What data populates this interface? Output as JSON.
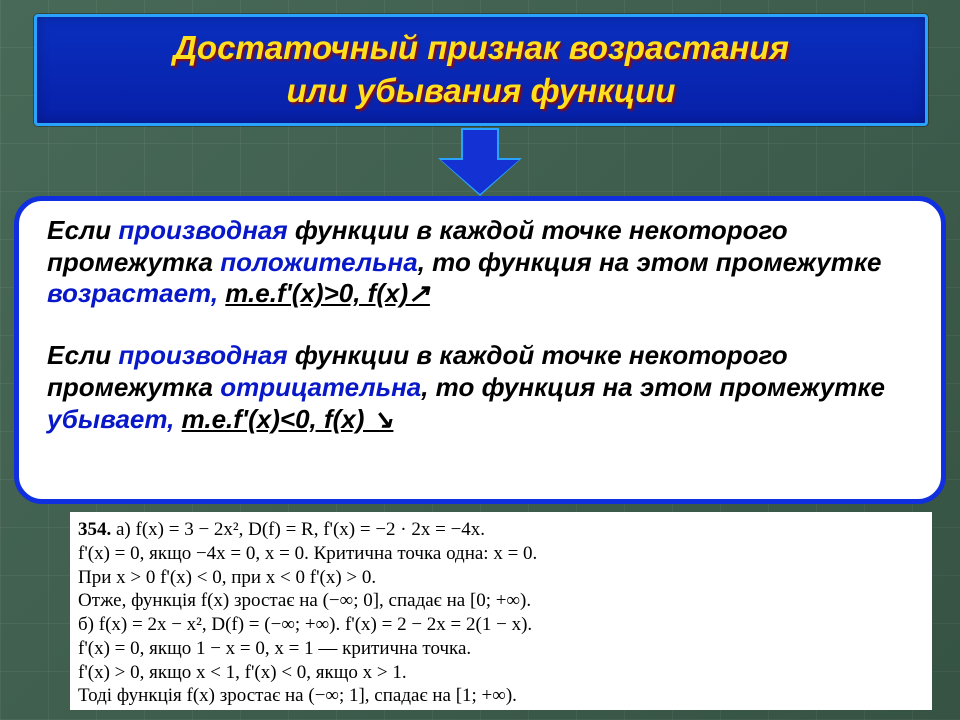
{
  "colors": {
    "slide_bg": "#3f614f",
    "title_bg_top": "#0a2fbf",
    "title_bg_bottom": "#0720a8",
    "title_border": "#2aa3ff",
    "title_text": "#ffdf1e",
    "title_shadow": "#8b0a0a",
    "arrow_fill": "#1432d4",
    "def_border": "#1030e0",
    "def_bg": "#ffffff",
    "def_text_blue": "#0818c8",
    "def_text_black": "#000000",
    "worked_bg": "#ffffff"
  },
  "typography": {
    "title_fontsize": 33,
    "title_style": "bold italic",
    "def_fontsize": 26,
    "def_style": "bold italic",
    "worked_family": "Times New Roman",
    "worked_fontsize": 19
  },
  "title": {
    "line1": "Достаточный признак возрастания",
    "line2": "или убывания функции"
  },
  "definition": {
    "p1_lead": "Если",
    "p1_a": " производная",
    "p1_b": " функции в каждой точке некоторого промежутка",
    "p1_c": " положительна",
    "p1_d": ", то функция на этом промежутке",
    "p1_e": " возрастает, ",
    "p1_formula": "т.e.f'(x)>0,  f(x)↗  ",
    "p2_lead": "Если",
    "p2_a": " производная",
    "p2_b": " функции в каждой точке некоторого промежутка",
    "p2_c": " отрицательна",
    "p2_d": ", то функция на этом промежутке",
    "p2_e": " убывает,  ",
    "p2_formula": "т.e.f'(x)<0,  f(x) ↘"
  },
  "worked": {
    "num": "354.",
    "l1": "  а)  f(x)  =  3  −  2x²,  D(f)  =  R,  f'(x)  =  −2 · 2x  =  −4x.",
    "l2": "f'(x)  =  0,  якщо  −4x  =  0,  x  =  0.  Критична  точка  одна:  x  =  0.",
    "l3": "При  x  >  0  f'(x)  <  0,  при  x  <  0  f'(x)  >  0.",
    "l4": "Отже,  функція  f(x)  зростає  на  (−∞; 0],  спадає  на  [0; +∞).",
    "l5": "б)  f(x)  =  2x  −  x²,  D(f)  =  (−∞; +∞).  f'(x)  =  2  −  2x  =  2(1  −  x).",
    "l6": "f'(x)  =  0,  якщо  1  −  x  =  0,  x  =  1  —  критична  точка.",
    "l7": "f'(x)  >  0,  якщо  x  <  1,  f'(x)  <  0,  якщо  x  >  1.",
    "l8": "Тоді  функція  f(x)  зростає  на  (−∞; 1],  спадає  на  [1; +∞)."
  }
}
